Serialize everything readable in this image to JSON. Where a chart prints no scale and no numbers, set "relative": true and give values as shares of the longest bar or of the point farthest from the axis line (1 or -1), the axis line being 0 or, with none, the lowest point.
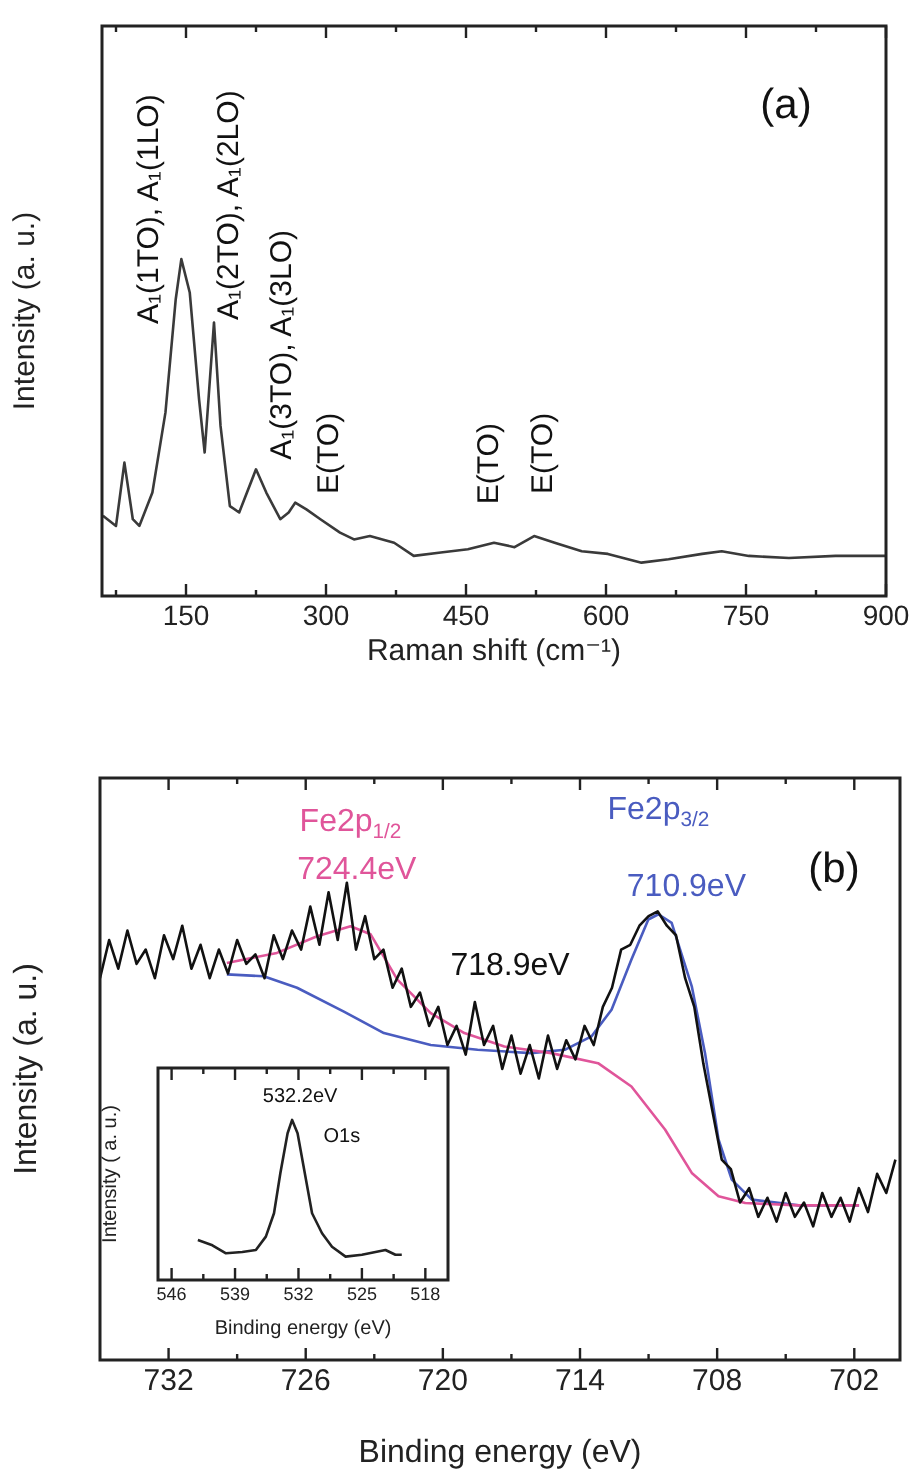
{
  "chart_data": [
    {
      "type": "line",
      "title": "(a)",
      "xlabel": "Raman shift (cm⁻¹)",
      "ylabel": "Intensity (a. u.)",
      "relative": true,
      "x": [
        61,
        75,
        84,
        93,
        100,
        114,
        128,
        139,
        145,
        154,
        164,
        170,
        180,
        187,
        197,
        207,
        225,
        236,
        251,
        260,
        267,
        279,
        294,
        315,
        330,
        347,
        373,
        394,
        423,
        452,
        480,
        502,
        523,
        545,
        574,
        602,
        638,
        667,
        703,
        724,
        753,
        796,
        846,
        900
      ],
      "series": [
        {
          "color": "#3a3a3a",
          "values": [
            0.238,
            0.208,
            0.396,
            0.228,
            0.208,
            0.307,
            0.545,
            0.881,
            1.0,
            0.901,
            0.584,
            0.426,
            0.812,
            0.505,
            0.267,
            0.248,
            0.376,
            0.307,
            0.228,
            0.248,
            0.277,
            0.257,
            0.228,
            0.188,
            0.168,
            0.178,
            0.158,
            0.119,
            0.129,
            0.139,
            0.158,
            0.145,
            0.178,
            0.158,
            0.133,
            0.125,
            0.099,
            0.109,
            0.125,
            0.133,
            0.119,
            0.113,
            0.119,
            0.119
          ]
        }
      ],
      "xlim": [
        60,
        900
      ],
      "xticks": [
        {
          "value": 75,
          "label": null
        },
        150,
        {
          "value": 225,
          "label": null
        },
        300,
        {
          "value": 375,
          "label": null
        },
        450,
        {
          "value": 525,
          "label": null
        },
        600,
        {
          "value": 675,
          "label": null
        },
        750,
        {
          "value": 825,
          "label": null
        },
        900
      ],
      "annotations": [
        "A₁(1TO), A₁(1LO)",
        "A₁(2TO), A₁(2LO)",
        "A₁(3TO), A₁(3LO)",
        "E(TO)",
        "E(TO)",
        "E(TO)"
      ]
    },
    {
      "type": "line",
      "title": "(b)",
      "xlabel": "Binding energy (eV)",
      "ylabel": "Intensity (a. u.)",
      "relative": true,
      "xlim": [
        735,
        700
      ],
      "xticks": [
        732,
        {
          "value": 729,
          "label": null
        },
        726,
        {
          "value": 723,
          "label": null
        },
        720,
        {
          "value": 717,
          "label": null
        },
        714,
        {
          "value": 711,
          "label": null
        },
        708,
        {
          "value": 705,
          "label": null
        },
        702
      ],
      "series": [
        {
          "color": "#111111",
          "x": [
            735.0,
            734.6,
            734.2,
            733.8,
            733.4,
            733.0,
            732.6,
            732.2,
            731.8,
            731.4,
            731.0,
            730.6,
            730.2,
            729.8,
            729.4,
            729.0,
            728.6,
            728.2,
            727.8,
            727.4,
            727.0,
            726.6,
            726.2,
            725.8,
            725.4,
            725.0,
            724.6,
            724.2,
            723.8,
            723.4,
            723.0,
            722.6,
            722.2,
            721.8,
            721.4,
            721.0,
            720.6,
            720.2,
            719.8,
            719.4,
            719.0,
            718.6,
            718.2,
            717.8,
            717.4,
            717.0,
            716.6,
            716.2,
            715.8,
            715.4,
            715.0,
            714.6,
            714.2,
            713.8,
            713.4,
            713.0,
            712.6,
            712.2,
            711.8,
            711.4,
            711.0,
            710.6,
            710.2,
            709.8,
            709.4,
            709.0,
            708.6,
            708.2,
            707.8,
            707.4,
            707.0,
            706.6,
            706.2,
            705.8,
            705.4,
            705.0,
            704.6,
            704.2,
            703.8,
            703.4,
            703.0,
            702.6,
            702.2,
            701.8,
            701.4,
            701.0,
            700.6,
            700.2
          ],
          "values": [
            0.8,
            0.88,
            0.82,
            0.9,
            0.83,
            0.86,
            0.8,
            0.89,
            0.84,
            0.91,
            0.82,
            0.87,
            0.8,
            0.86,
            0.81,
            0.88,
            0.83,
            0.85,
            0.8,
            0.89,
            0.84,
            0.9,
            0.86,
            0.95,
            0.87,
            0.98,
            0.88,
            1.0,
            0.86,
            0.93,
            0.84,
            0.86,
            0.78,
            0.82,
            0.74,
            0.77,
            0.7,
            0.74,
            0.66,
            0.7,
            0.64,
            0.75,
            0.66,
            0.7,
            0.61,
            0.68,
            0.6,
            0.66,
            0.59,
            0.68,
            0.61,
            0.67,
            0.63,
            0.7,
            0.66,
            0.74,
            0.78,
            0.86,
            0.87,
            0.91,
            0.93,
            0.94,
            0.91,
            0.89,
            0.8,
            0.74,
            0.62,
            0.52,
            0.42,
            0.4,
            0.33,
            0.36,
            0.3,
            0.34,
            0.29,
            0.35,
            0.3,
            0.33,
            0.28,
            0.35,
            0.3,
            0.34,
            0.29,
            0.36,
            0.31,
            0.39,
            0.35,
            0.42
          ]
        },
        {
          "name": "Fe2p$_{1/2}$",
          "color": "#e0559a",
          "x": [
            729.45,
            727.26,
            725.5,
            724.04,
            723.16,
            721.99,
            720.53,
            719.06,
            717.31,
            715.26,
            713.21,
            711.75,
            710.28,
            709.11,
            707.94,
            706.77,
            704.43,
            701.79
          ],
          "values": [
            0.832,
            0.853,
            0.888,
            0.909,
            0.892,
            0.797,
            0.727,
            0.685,
            0.657,
            0.643,
            0.622,
            0.573,
            0.483,
            0.392,
            0.343,
            0.329,
            0.324,
            0.324
          ]
        },
        {
          "name": "Fe2p$_{3/2}$",
          "color": "#4a5cc0",
          "x": [
            729.45,
            727.84,
            726.38,
            724.33,
            722.58,
            720.53,
            718.48,
            716.14,
            714.67,
            713.5,
            712.62,
            711.75,
            711.01,
            710.57,
            709.99,
            709.11,
            708.53,
            707.94,
            707.36,
            706.48,
            704.43,
            701.79
          ],
          "values": [
            0.808,
            0.804,
            0.78,
            0.73,
            0.685,
            0.66,
            0.65,
            0.643,
            0.65,
            0.678,
            0.734,
            0.839,
            0.923,
            0.934,
            0.916,
            0.783,
            0.643,
            0.462,
            0.378,
            0.336,
            0.324,
            0.324
          ]
        }
      ],
      "annotations": [
        "724.4eV",
        "710.9eV",
        "718.9eV"
      ]
    },
    {
      "type": "line",
      "xlabel": "Binding energy (eV)",
      "ylabel": "Intensity ( a. u.)",
      "relative": true,
      "xlim": [
        547.5,
        515.5
      ],
      "xticks": [
        546,
        {
          "value": 542.5,
          "label": null
        },
        539,
        {
          "value": 535.5,
          "label": null
        },
        532,
        {
          "value": 528.5,
          "label": null
        },
        525,
        {
          "value": 521.5,
          "label": null
        },
        518
      ],
      "x": [
        543.1,
        541.5,
        540.0,
        538.2,
        536.7,
        535.6,
        534.7,
        534.0,
        533.2,
        532.7,
        532.1,
        531.3,
        530.5,
        529.4,
        528.3,
        526.8,
        525.0,
        523.5,
        522.4,
        521.3,
        520.6
      ],
      "series": [
        {
          "color": "#222222",
          "values": [
            0.25,
            0.217,
            0.167,
            0.175,
            0.1875,
            0.271,
            0.417,
            0.667,
            0.917,
            1.0,
            0.917,
            0.667,
            0.417,
            0.292,
            0.208,
            0.146,
            0.158,
            0.175,
            0.1875,
            0.158,
            0.158
          ]
        }
      ],
      "annotations": [
        "532.2eV",
        "O1s"
      ]
    }
  ]
}
